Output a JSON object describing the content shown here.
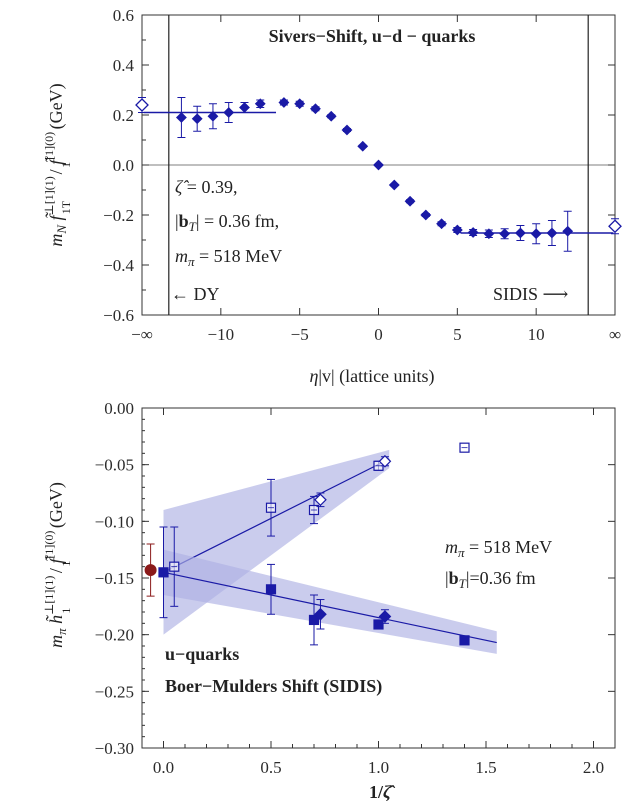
{
  "chart_data": [
    {
      "type": "scatter",
      "title": "Sivers−Shift, u−d − quarks",
      "xlabel": "η|v|  (lattice units)",
      "ylabel": "m_N f̃1T^⊥[1](1) / f̃1^[1](0)  (GeV)",
      "ylabel_parts": {
        "main": "m",
        "sub1": "N",
        "f1": "f̃",
        "f1sup": "⊥[1](1)",
        "f1sub": "1T",
        "slash": "/",
        "f2": "f̃",
        "f2sup": "[1](0)",
        "f2sub": "1",
        "unit": "(GeV)"
      },
      "xlim": [
        -15,
        15
      ],
      "ylim": [
        -0.6,
        0.6
      ],
      "x_ticks": [
        {
          "v": -15,
          "label": "−∞"
        },
        {
          "v": -10,
          "label": "−10"
        },
        {
          "v": -5,
          "label": "−5"
        },
        {
          "v": 0,
          "label": "0"
        },
        {
          "v": 5,
          "label": "5"
        },
        {
          "v": 10,
          "label": "10"
        },
        {
          "v": 15,
          "label": "∞"
        }
      ],
      "y_ticks": [
        {
          "v": 0.6,
          "label": "0.6"
        },
        {
          "v": 0.4,
          "label": "0.4"
        },
        {
          "v": 0.2,
          "label": "0.2"
        },
        {
          "v": 0.0,
          "label": "0.0"
        },
        {
          "v": -0.2,
          "label": "−0.2"
        },
        {
          "v": -0.4,
          "label": "−0.4"
        },
        {
          "v": -0.6,
          "label": "−0.6"
        }
      ],
      "vertical_lines": [
        -13.3,
        13.3
      ],
      "plateau_lines": [
        {
          "x": [
            -14.9,
            -6.5
          ],
          "y": 0.21
        },
        {
          "x": [
            5.2,
            14.9
          ],
          "y": -0.272
        }
      ],
      "points": [
        {
          "x": -12.5,
          "y": 0.19,
          "err": 0.08
        },
        {
          "x": -11.5,
          "y": 0.185,
          "err": 0.05
        },
        {
          "x": -10.5,
          "y": 0.195,
          "err": 0.05
        },
        {
          "x": -9.5,
          "y": 0.21,
          "err": 0.04
        },
        {
          "x": -8.5,
          "y": 0.23,
          "err": 0.02
        },
        {
          "x": -7.5,
          "y": 0.245,
          "err": 0.015
        },
        {
          "x": -6.0,
          "y": 0.25,
          "err": 0.01
        },
        {
          "x": -5.0,
          "y": 0.245,
          "err": 0.01
        },
        {
          "x": -4.0,
          "y": 0.225,
          "err": 0.008
        },
        {
          "x": -3.0,
          "y": 0.195,
          "err": 0.006
        },
        {
          "x": -2.0,
          "y": 0.14,
          "err": 0.006
        },
        {
          "x": -1.0,
          "y": 0.075,
          "err": 0.004
        },
        {
          "x": 0.0,
          "y": 0.0,
          "err": 0.0
        },
        {
          "x": 1.0,
          "y": -0.08,
          "err": 0.004
        },
        {
          "x": 2.0,
          "y": -0.145,
          "err": 0.006
        },
        {
          "x": 3.0,
          "y": -0.2,
          "err": 0.006
        },
        {
          "x": 4.0,
          "y": -0.235,
          "err": 0.008
        },
        {
          "x": 5.0,
          "y": -0.26,
          "err": 0.01
        },
        {
          "x": 6.0,
          "y": -0.27,
          "err": 0.012
        },
        {
          "x": 7.0,
          "y": -0.275,
          "err": 0.015
        },
        {
          "x": 8.0,
          "y": -0.275,
          "err": 0.02
        },
        {
          "x": 9.0,
          "y": -0.272,
          "err": 0.03
        },
        {
          "x": 10.0,
          "y": -0.275,
          "err": 0.04
        },
        {
          "x": 11.0,
          "y": -0.272,
          "err": 0.05
        },
        {
          "x": 12.0,
          "y": -0.265,
          "err": 0.08
        }
      ],
      "open_points": [
        {
          "x": -15.0,
          "y": 0.24,
          "err": 0.03
        },
        {
          "x": 15.0,
          "y": -0.245,
          "err": 0.03
        }
      ],
      "annotations": {
        "zeta": "ζ̂ = 0.39,",
        "bt": "|bT| = 0.36 fm,",
        "mpi": "mπ = 518 MeV",
        "dy": "← DY",
        "sidis": "SIDIS ⟶"
      },
      "color": "#1a1aa6"
    },
    {
      "type": "scatter",
      "title": "",
      "xlabel": "1/ζ̂",
      "ylabel": "mπ h̃1^⊥[1](1) / f̃1^[1](0)  (GeV)",
      "xlim": [
        -0.1,
        2.1
      ],
      "ylim": [
        -0.3,
        0.0
      ],
      "x_ticks": [
        {
          "v": 0.0,
          "label": "0.0"
        },
        {
          "v": 0.5,
          "label": "0.5"
        },
        {
          "v": 1.0,
          "label": "1.0"
        },
        {
          "v": 1.5,
          "label": "1.5"
        },
        {
          "v": 2.0,
          "label": "2.0"
        }
      ],
      "y_ticks": [
        {
          "v": 0.0,
          "label": "0.00"
        },
        {
          "v": -0.05,
          "label": "−0.05"
        },
        {
          "v": -0.1,
          "label": "−0.10"
        },
        {
          "v": -0.15,
          "label": "−0.15"
        },
        {
          "v": -0.2,
          "label": "−0.20"
        },
        {
          "v": -0.25,
          "label": "−0.25"
        },
        {
          "v": -0.3,
          "label": "−0.30"
        }
      ],
      "fit_upper": {
        "x0": 0.0,
        "x1": 1.05,
        "y0": -0.145,
        "y1": -0.045,
        "band_start": 0.055,
        "band_end": 0.008
      },
      "fit_lower": {
        "x0": 0.0,
        "x1": 1.55,
        "y0": -0.145,
        "y1": -0.207,
        "band_start": 0.02,
        "band_end": 0.01
      },
      "open_squares": [
        {
          "x": 0.05,
          "y": -0.14,
          "err": 0.035
        },
        {
          "x": 0.5,
          "y": -0.088,
          "err": 0.025
        },
        {
          "x": 0.7,
          "y": -0.09,
          "err": 0.012
        },
        {
          "x": 1.0,
          "y": -0.051,
          "err": 0.004
        },
        {
          "x": 1.4,
          "y": -0.035,
          "err": 0.0
        }
      ],
      "open_diamonds": [
        {
          "x": 0.73,
          "y": -0.081,
          "err": 0.006
        },
        {
          "x": 1.03,
          "y": -0.047,
          "err": 0.004
        }
      ],
      "filled_squares": [
        {
          "x": 0.0,
          "y": -0.145,
          "err": 0.04
        },
        {
          "x": 0.5,
          "y": -0.16,
          "err": 0.022
        },
        {
          "x": 0.7,
          "y": -0.187,
          "err": 0.022
        },
        {
          "x": 1.0,
          "y": -0.191,
          "err": 0.003
        },
        {
          "x": 1.4,
          "y": -0.205,
          "err": 0.0
        }
      ],
      "filled_diamonds": [
        {
          "x": 0.73,
          "y": -0.182,
          "err": 0.013
        },
        {
          "x": 1.03,
          "y": -0.184,
          "err": 0.006
        }
      ],
      "red_point": {
        "x": -0.06,
        "y": -0.143,
        "err": 0.023
      },
      "annotations": {
        "mpi": "mπ = 518 MeV",
        "bt": "|bT|=0.36 fm",
        "quark": "u−quarks",
        "label": "Boer−Mulders Shift (SIDIS)"
      },
      "color": "#1a1aa6",
      "band_color": "#aeb0e3",
      "red_color": "#8b1a1a"
    }
  ]
}
